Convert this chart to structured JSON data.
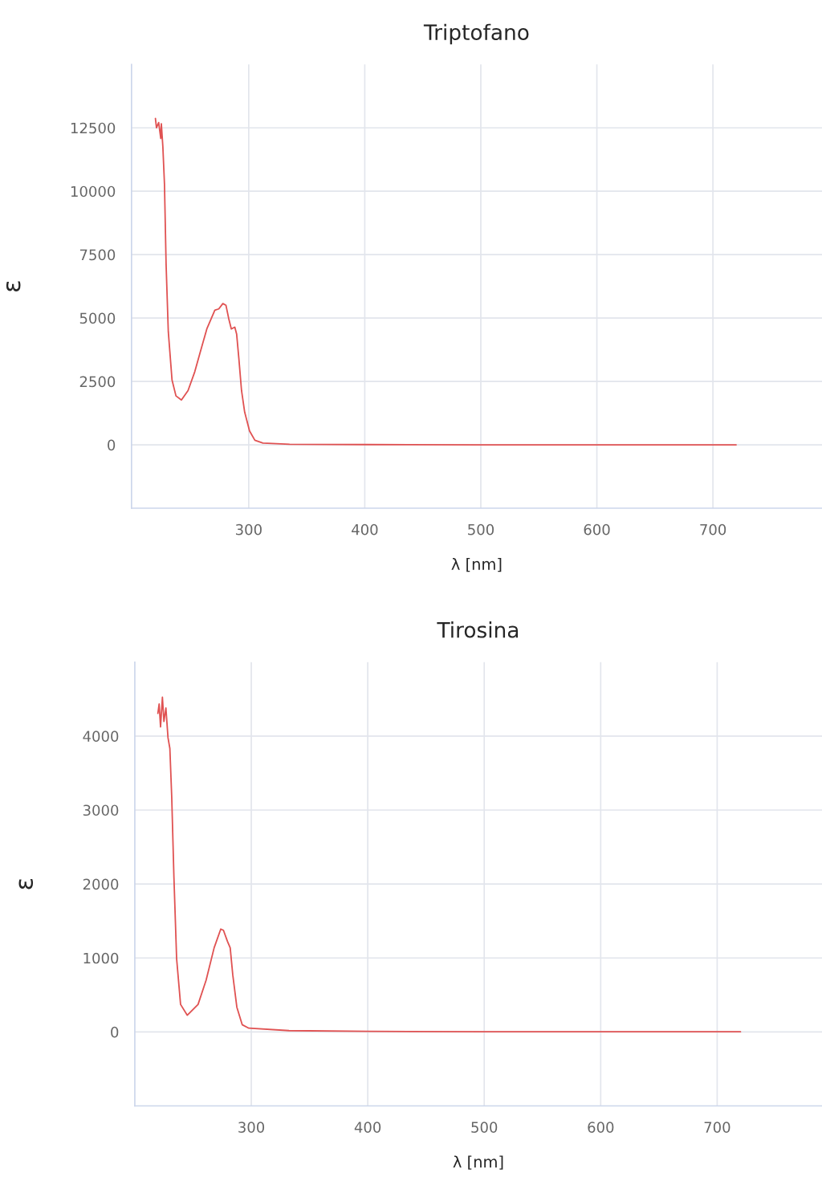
{
  "chart_data": [
    {
      "type": "line",
      "title": "Triptofano",
      "xlabel": "λ [nm]",
      "ylabel": "ε",
      "xlim": [
        199,
        794
      ],
      "ylim": [
        -2500,
        15000
      ],
      "xticks": [
        300,
        400,
        500,
        600,
        700
      ],
      "yticks": [
        0,
        2500,
        5000,
        7500,
        10000,
        12500
      ],
      "grid": true,
      "legend": false,
      "series": [
        {
          "color": "#e05252",
          "x": [
            219.6,
            220.5,
            222.4,
            224.2,
            224.7,
            226,
            227.4,
            228.8,
            230.7,
            233.9,
            237.3,
            242,
            247.7,
            253.5,
            258,
            263.9,
            270.8,
            274.2,
            277.7,
            280.4,
            282.7,
            285,
            288,
            289.6,
            291.5,
            293.8,
            296.5,
            300.7,
            305.3,
            312.2,
            335.2,
            400,
            500,
            600,
            720
          ],
          "values": [
            12870,
            12500,
            12710,
            12080,
            12660,
            11760,
            10280,
            7110,
            4460,
            2560,
            1930,
            1770,
            2140,
            2880,
            3620,
            4570,
            5310,
            5360,
            5570,
            5500,
            4990,
            4570,
            4640,
            4360,
            3400,
            2140,
            1290,
            550,
            180,
            70,
            20,
            10,
            0,
            0,
            0
          ]
        }
      ]
    },
    {
      "type": "line",
      "title": "Tirosina",
      "xlabel": "λ [nm]",
      "ylabel": "ε",
      "xlim": [
        200,
        790
      ],
      "ylim": [
        -1000,
        5000
      ],
      "xticks": [
        300,
        400,
        500,
        600,
        700
      ],
      "yticks": [
        0,
        1000,
        2000,
        3000,
        4000
      ],
      "grid": true,
      "legend": false,
      "series": [
        {
          "color": "#e05252",
          "x": [
            219.8,
            220.9,
            222.1,
            223.7,
            225,
            226.7,
            228.5,
            230.1,
            231.7,
            233.6,
            235.9,
            239.3,
            245,
            254.3,
            261.2,
            268.1,
            273.8,
            276.1,
            279.5,
            281.9,
            284.1,
            287.6,
            292.2,
            297.9,
            332.4,
            400,
            500,
            600,
            720
          ],
          "values": [
            4306,
            4434,
            4124,
            4525,
            4197,
            4380,
            3978,
            3833,
            3177,
            2084,
            991,
            372,
            226,
            372,
            699,
            1137,
            1391,
            1374,
            1227,
            1137,
            773,
            336,
            98,
            51,
            18,
            8,
            2,
            2,
            2
          ]
        }
      ]
    }
  ]
}
